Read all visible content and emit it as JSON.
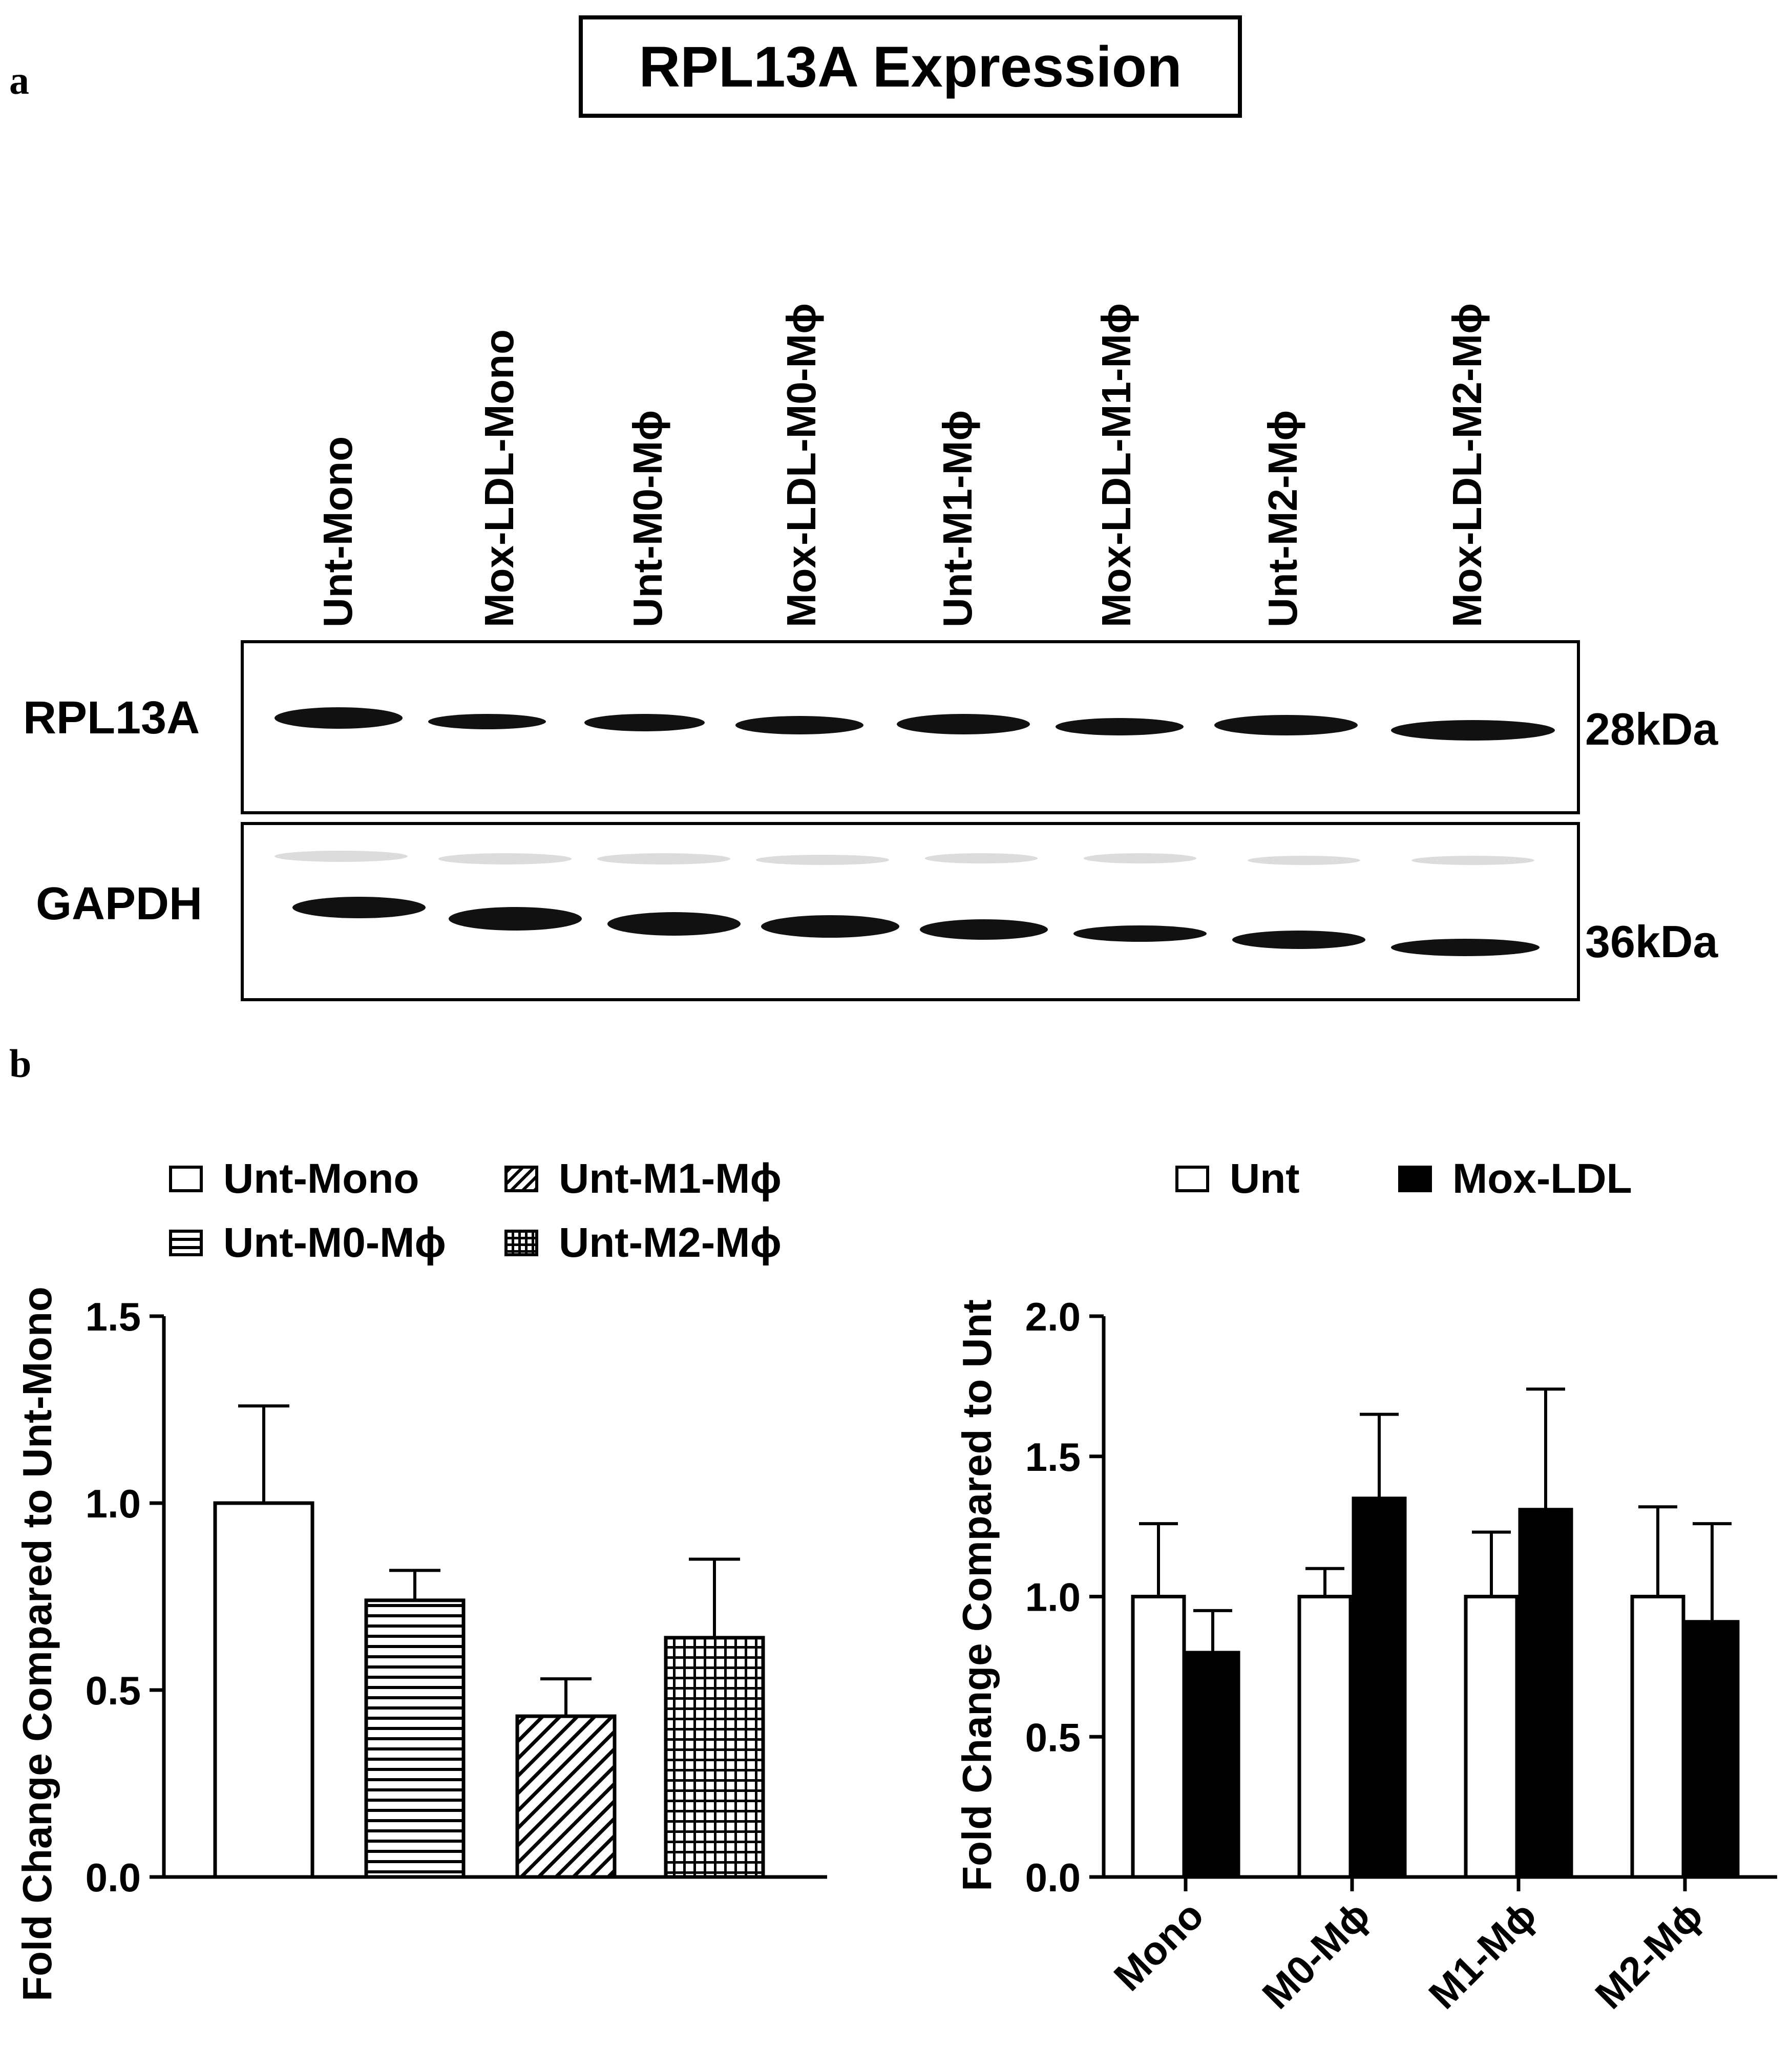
{
  "panel_a": {
    "letter": "a",
    "title": "RPL13A Expression",
    "lanes": [
      "Unt-Mono",
      "Mox-LDL-Mono",
      "Unt-M0-Mϕ",
      "Mox-LDL-M0-Mϕ",
      "Unt-M1-Mϕ",
      "Mox-LDL-M1-Mϕ",
      "Unt-M2-Mϕ",
      "Mox-LDL-M2-Mϕ"
    ],
    "blots": [
      {
        "label": "RPL13A",
        "kda": "28kDa"
      },
      {
        "label": "GAPDH",
        "kda": "36kDa"
      }
    ]
  },
  "panel_b": {
    "letter": "b"
  },
  "chart_data": [
    {
      "type": "bar",
      "categories": [
        "Unt-Mono",
        "Unt-M0-Mϕ",
        "Unt-M1-Mϕ",
        "Unt-M2-Mϕ"
      ],
      "values": [
        1.0,
        0.74,
        0.43,
        0.64
      ],
      "errors": [
        0.26,
        0.08,
        0.1,
        0.21
      ],
      "patterns": [
        "open",
        "horizontal-lines",
        "diagonal-lines",
        "grid"
      ],
      "ylabel": "Fold Change Compared to Unt-Mono",
      "ylim": [
        0,
        1.5
      ],
      "yticks": [
        "0.0",
        "0.5",
        "1.0",
        "1.5"
      ],
      "legend": [
        "Unt-Mono",
        "Unt-M1-Mϕ",
        "Unt-M0-Mϕ",
        "Unt-M2-Mϕ"
      ],
      "legend_placement": "top"
    },
    {
      "type": "bar",
      "categories": [
        "Mono",
        "M0-Mϕ",
        "M1-Mϕ",
        "M2-Mϕ"
      ],
      "series": [
        {
          "name": "Unt",
          "values": [
            1.0,
            1.0,
            1.0,
            1.0
          ],
          "errors": [
            0.26,
            0.1,
            0.23,
            0.32
          ],
          "fill": "#ffffff"
        },
        {
          "name": "Mox-LDL",
          "values": [
            0.8,
            1.35,
            1.31,
            0.91
          ],
          "errors": [
            0.15,
            0.3,
            0.43,
            0.35
          ],
          "fill": "#000000"
        }
      ],
      "ylabel": "Fold Change Compared to Unt",
      "ylim": [
        0,
        2.0
      ],
      "yticks": [
        "0.0",
        "0.5",
        "1.0",
        "1.5",
        "2.0"
      ],
      "legend_placement": "top"
    }
  ]
}
